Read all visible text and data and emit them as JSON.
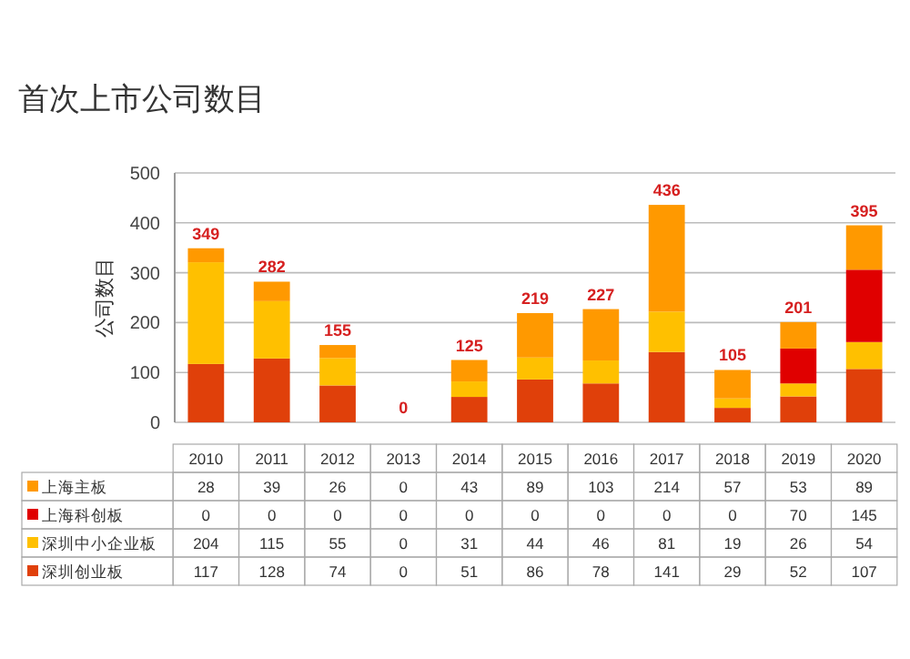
{
  "chart_data": {
    "type": "bar",
    "title": "首次上市公司数目",
    "ylabel": "公司数目",
    "stacked": true,
    "categories": [
      "2010",
      "2011",
      "2012",
      "2013",
      "2014",
      "2015",
      "2016",
      "2017",
      "2018",
      "2019",
      "2020"
    ],
    "series": [
      {
        "name": "深圳创业板",
        "color": "#e0400a",
        "values": [
          117,
          128,
          74,
          0,
          51,
          86,
          78,
          141,
          29,
          52,
          107
        ]
      },
      {
        "name": "深圳中小企业板",
        "color": "#ffc000",
        "values": [
          204,
          115,
          55,
          0,
          31,
          44,
          46,
          81,
          19,
          26,
          54
        ]
      },
      {
        "name": "上海科创板",
        "color": "#e00000",
        "values": [
          0,
          0,
          0,
          0,
          0,
          0,
          0,
          0,
          0,
          70,
          145
        ]
      },
      {
        "name": "上海主板",
        "color": "#ff9900",
        "values": [
          28,
          39,
          26,
          0,
          43,
          89,
          103,
          214,
          57,
          53,
          89
        ]
      }
    ],
    "totals": [
      "349",
      "282",
      "155",
      "0",
      "125",
      "219",
      "227",
      "436",
      "105",
      "201",
      "395"
    ],
    "ylim": [
      0,
      500
    ],
    "yticks": [
      0,
      100,
      200,
      300,
      400,
      500
    ],
    "grid": "y",
    "data_labels": true,
    "legend": "bottom"
  }
}
